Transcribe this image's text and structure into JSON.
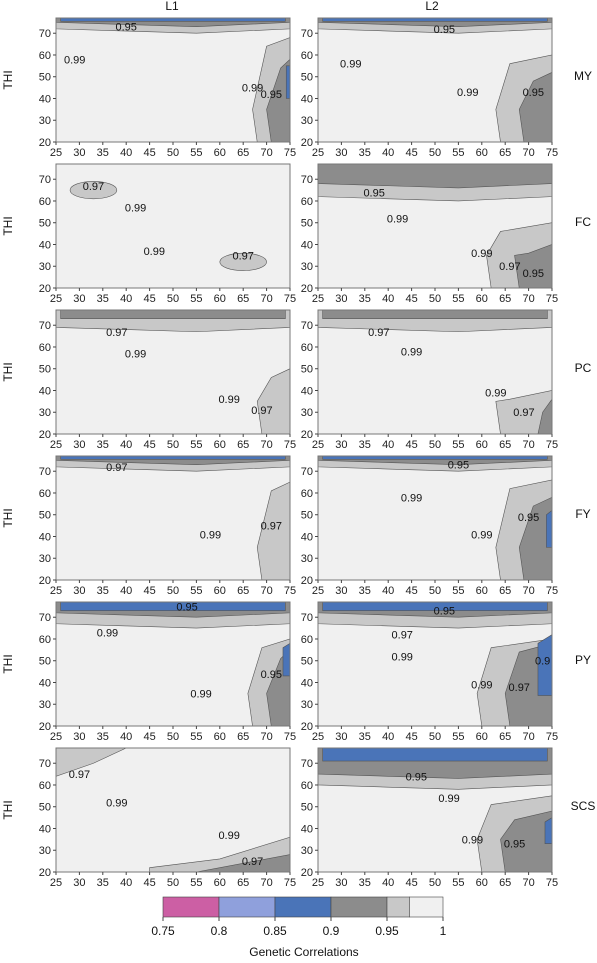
{
  "chart_data": {
    "type": "contour",
    "column_titles": [
      "L1",
      "L2"
    ],
    "row_titles": [
      "MY",
      "FC",
      "PC",
      "FY",
      "PY",
      "SCS"
    ],
    "ylabel": "THI",
    "x_ticks": [
      25,
      30,
      35,
      40,
      45,
      50,
      55,
      60,
      65,
      70,
      75
    ],
    "y_ticks": [
      20,
      30,
      40,
      50,
      60,
      70
    ],
    "xlim": [
      25,
      75
    ],
    "ylim": [
      20,
      77
    ],
    "colorbar": {
      "label": "Genetic Correlations",
      "ticks": [
        "0.75",
        "0.8",
        "0.85",
        "0.9",
        "0.95",
        "1"
      ],
      "bands": [
        {
          "from": 0.75,
          "to": 0.8,
          "color": "#cc5fa4"
        },
        {
          "from": 0.8,
          "to": 0.85,
          "color": "#8fa0dc"
        },
        {
          "from": 0.85,
          "to": 0.9,
          "color": "#4a74b8"
        },
        {
          "from": 0.9,
          "to": 0.95,
          "color": "#8c8c8c"
        },
        {
          "from": 0.95,
          "to": 0.97,
          "color": "#c8c8c8"
        },
        {
          "from": 0.97,
          "to": 1.0,
          "color": "#f0f0f0"
        }
      ]
    },
    "panels": [
      {
        "trait": "MY",
        "location": "L1",
        "contour_labels": [
          {
            "text": "0.95",
            "x": 40,
            "y": 73
          },
          {
            "text": "0.99",
            "x": 29,
            "y": 58
          },
          {
            "text": "0.99",
            "x": 67,
            "y": 45
          },
          {
            "text": "0.95",
            "x": 71,
            "y": 42
          }
        ]
      },
      {
        "trait": "MY",
        "location": "L2",
        "contour_labels": [
          {
            "text": "0.95",
            "x": 52,
            "y": 72
          },
          {
            "text": "0.99",
            "x": 32,
            "y": 56
          },
          {
            "text": "0.99",
            "x": 57,
            "y": 43
          },
          {
            "text": "0.95",
            "x": 71,
            "y": 43
          }
        ]
      },
      {
        "trait": "FC",
        "location": "L1",
        "contour_labels": [
          {
            "text": "0.97",
            "x": 33,
            "y": 67
          },
          {
            "text": "0.99",
            "x": 42,
            "y": 57
          },
          {
            "text": "0.99",
            "x": 46,
            "y": 37
          },
          {
            "text": "0.97",
            "x": 65,
            "y": 35
          }
        ]
      },
      {
        "trait": "FC",
        "location": "L2",
        "contour_labels": [
          {
            "text": "0.95",
            "x": 37,
            "y": 64
          },
          {
            "text": "0.99",
            "x": 42,
            "y": 52
          },
          {
            "text": "0.99",
            "x": 60,
            "y": 36
          },
          {
            "text": "0.97",
            "x": 66,
            "y": 30
          },
          {
            "text": "0.95",
            "x": 71,
            "y": 27
          }
        ]
      },
      {
        "trait": "PC",
        "location": "L1",
        "contour_labels": [
          {
            "text": "0.97",
            "x": 38,
            "y": 67
          },
          {
            "text": "0.99",
            "x": 42,
            "y": 57
          },
          {
            "text": "0.99",
            "x": 62,
            "y": 36
          },
          {
            "text": "0.97",
            "x": 69,
            "y": 31
          }
        ]
      },
      {
        "trait": "PC",
        "location": "L2",
        "contour_labels": [
          {
            "text": "0.97",
            "x": 38,
            "y": 67
          },
          {
            "text": "0.99",
            "x": 45,
            "y": 58
          },
          {
            "text": "0.99",
            "x": 63,
            "y": 39
          },
          {
            "text": "0.97",
            "x": 69,
            "y": 30
          }
        ]
      },
      {
        "trait": "FY",
        "location": "L1",
        "contour_labels": [
          {
            "text": "0.97",
            "x": 38,
            "y": 72
          },
          {
            "text": "0.99",
            "x": 58,
            "y": 41
          },
          {
            "text": "0.97",
            "x": 71,
            "y": 45
          }
        ]
      },
      {
        "trait": "FY",
        "location": "L2",
        "contour_labels": [
          {
            "text": "0.95",
            "x": 55,
            "y": 73
          },
          {
            "text": "0.99",
            "x": 45,
            "y": 58
          },
          {
            "text": "0.99",
            "x": 60,
            "y": 41
          },
          {
            "text": "0.95",
            "x": 70,
            "y": 49
          }
        ]
      },
      {
        "trait": "PY",
        "location": "L1",
        "contour_labels": [
          {
            "text": "0.95",
            "x": 53,
            "y": 75
          },
          {
            "text": "0.99",
            "x": 36,
            "y": 63
          },
          {
            "text": "0.99",
            "x": 56,
            "y": 35
          },
          {
            "text": "0.95",
            "x": 71,
            "y": 44
          }
        ]
      },
      {
        "trait": "PY",
        "location": "L2",
        "contour_labels": [
          {
            "text": "0.95",
            "x": 52,
            "y": 73
          },
          {
            "text": "0.97",
            "x": 43,
            "y": 62
          },
          {
            "text": "0.99",
            "x": 43,
            "y": 52
          },
          {
            "text": "0.99",
            "x": 60,
            "y": 39
          },
          {
            "text": "0.97",
            "x": 68,
            "y": 38
          },
          {
            "text": "0.9",
            "x": 73,
            "y": 50
          }
        ]
      },
      {
        "trait": "SCS",
        "location": "L1",
        "contour_labels": [
          {
            "text": "0.97",
            "x": 30,
            "y": 65
          },
          {
            "text": "0.99",
            "x": 38,
            "y": 52
          },
          {
            "text": "0.99",
            "x": 62,
            "y": 37
          },
          {
            "text": "0.97",
            "x": 67,
            "y": 25
          }
        ]
      },
      {
        "trait": "SCS",
        "location": "L2",
        "contour_labels": [
          {
            "text": "0.95",
            "x": 46,
            "y": 64
          },
          {
            "text": "0.99",
            "x": 53,
            "y": 54
          },
          {
            "text": "0.99",
            "x": 58,
            "y": 35
          },
          {
            "text": "0.95",
            "x": 67,
            "y": 33
          }
        ]
      }
    ]
  }
}
